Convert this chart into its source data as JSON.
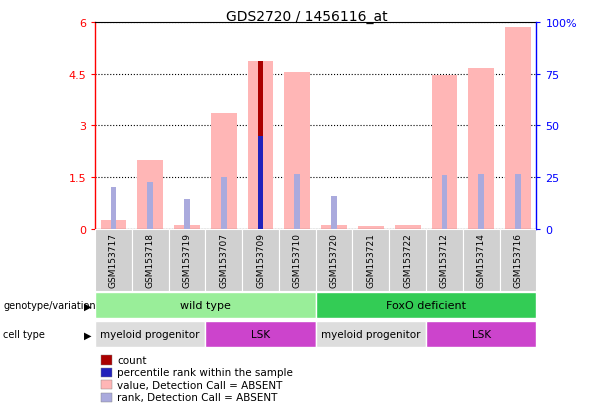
{
  "title": "GDS2720 / 1456116_at",
  "samples": [
    "GSM153717",
    "GSM153718",
    "GSM153719",
    "GSM153707",
    "GSM153709",
    "GSM153710",
    "GSM153720",
    "GSM153721",
    "GSM153722",
    "GSM153712",
    "GSM153714",
    "GSM153716"
  ],
  "pink_bar_heights": [
    0.25,
    2.0,
    0.1,
    3.35,
    4.85,
    4.55,
    0.12,
    0.08,
    0.1,
    4.45,
    4.65,
    5.85
  ],
  "red_bar_heights": [
    0.0,
    0.0,
    0.0,
    0.0,
    4.85,
    0.0,
    0.0,
    0.0,
    0.0,
    0.0,
    0.0,
    0.0
  ],
  "blue_rank_heights": [
    0.0,
    0.0,
    0.0,
    0.0,
    2.7,
    0.0,
    0.0,
    0.0,
    0.0,
    0.0,
    0.0,
    0.0
  ],
  "light_blue_heights": [
    1.2,
    1.35,
    0.85,
    1.5,
    0.0,
    1.6,
    0.95,
    0.0,
    0.0,
    1.55,
    1.6,
    1.6
  ],
  "ylim_left": [
    0,
    6
  ],
  "ylim_right": [
    0,
    100
  ],
  "yticks_left": [
    0,
    1.5,
    3.0,
    4.5,
    6.0
  ],
  "ytick_labels_left": [
    "0",
    "1.5",
    "3",
    "4.5",
    "6"
  ],
  "yticks_right": [
    0,
    25,
    50,
    75,
    100
  ],
  "ytick_labels_right": [
    "0",
    "25",
    "50",
    "75",
    "100%"
  ],
  "pink_color": "#FFB6B6",
  "red_color": "#AA0000",
  "blue_color": "#2222BB",
  "light_blue_color": "#AAAADD",
  "genotype_groups": [
    {
      "label": "wild type",
      "start": 0,
      "end": 5,
      "color": "#99EE99"
    },
    {
      "label": "FoxO deficient",
      "start": 6,
      "end": 11,
      "color": "#33CC55"
    }
  ],
  "cell_type_groups": [
    {
      "label": "myeloid progenitor",
      "start": 0,
      "end": 2,
      "color": "#DDDDDD"
    },
    {
      "label": "LSK",
      "start": 3,
      "end": 5,
      "color": "#CC44CC"
    },
    {
      "label": "myeloid progenitor",
      "start": 6,
      "end": 8,
      "color": "#DDDDDD"
    },
    {
      "label": "LSK",
      "start": 9,
      "end": 11,
      "color": "#CC44CC"
    }
  ],
  "legend_items": [
    {
      "label": "count",
      "color": "#AA0000"
    },
    {
      "label": "percentile rank within the sample",
      "color": "#2222BB"
    },
    {
      "label": "value, Detection Call = ABSENT",
      "color": "#FFB6B6"
    },
    {
      "label": "rank, Detection Call = ABSENT",
      "color": "#AAAADD"
    }
  ]
}
